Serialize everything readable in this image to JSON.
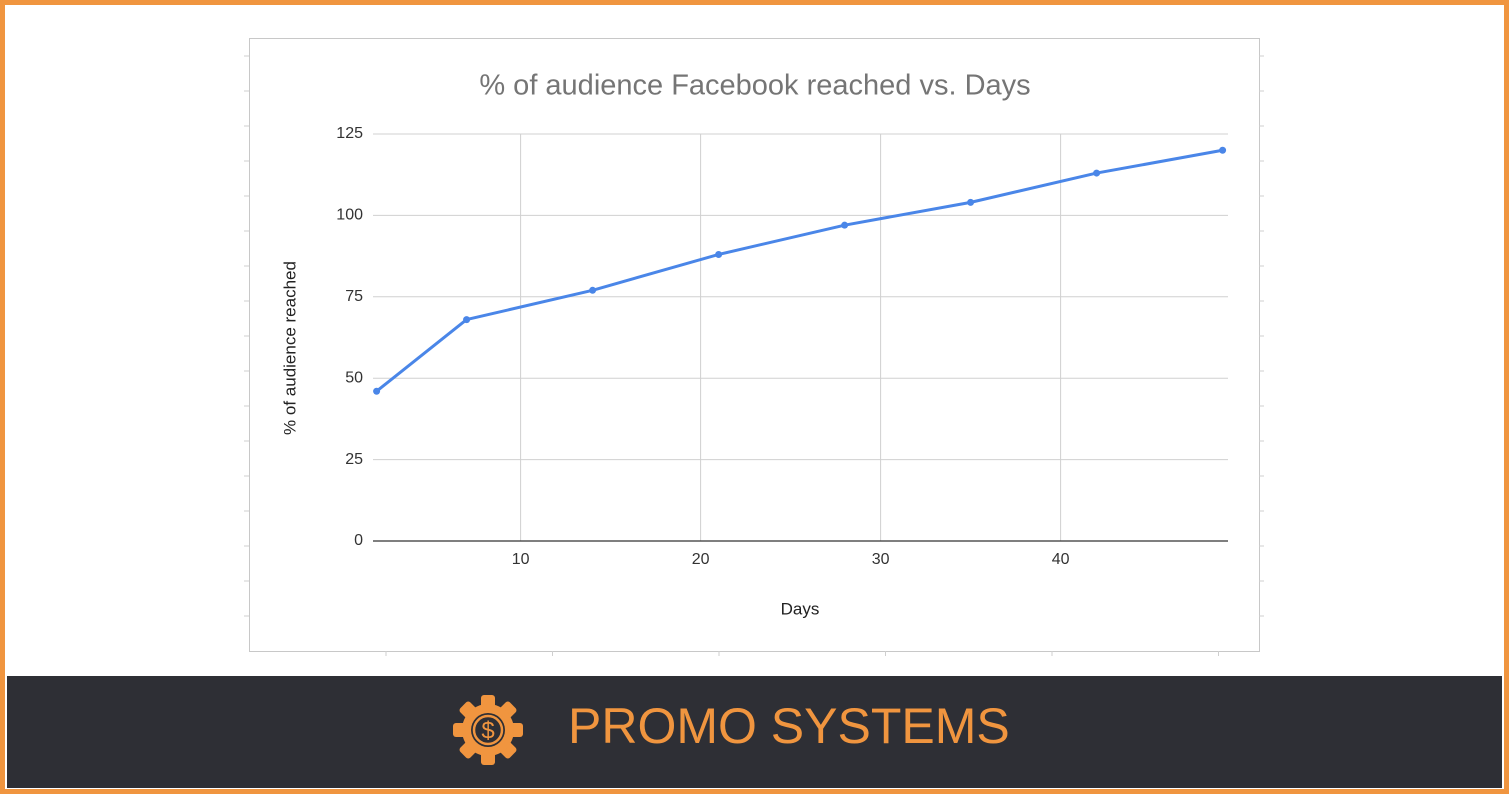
{
  "chart_data": {
    "type": "line",
    "title": "% of audience Facebook reached vs. Days",
    "x_label": "Days",
    "y_label": "% of audience reached",
    "x": [
      2,
      7,
      14,
      21,
      28,
      35,
      42,
      49
    ],
    "series": [
      {
        "name": "% of audience reached",
        "color": "#4a86e8",
        "values": [
          46,
          68,
          77,
          88,
          97,
          104,
          113,
          120
        ]
      }
    ],
    "xlim": [
      1.8,
      49.3
    ],
    "xticks": [
      10,
      20,
      30,
      40
    ],
    "ylim": [
      0,
      125
    ],
    "yticks": [
      0,
      25,
      50,
      75,
      100,
      125
    ],
    "grid": true
  },
  "brand": {
    "icon_symbol": "$",
    "name": "PROMO SYSTEMS"
  }
}
